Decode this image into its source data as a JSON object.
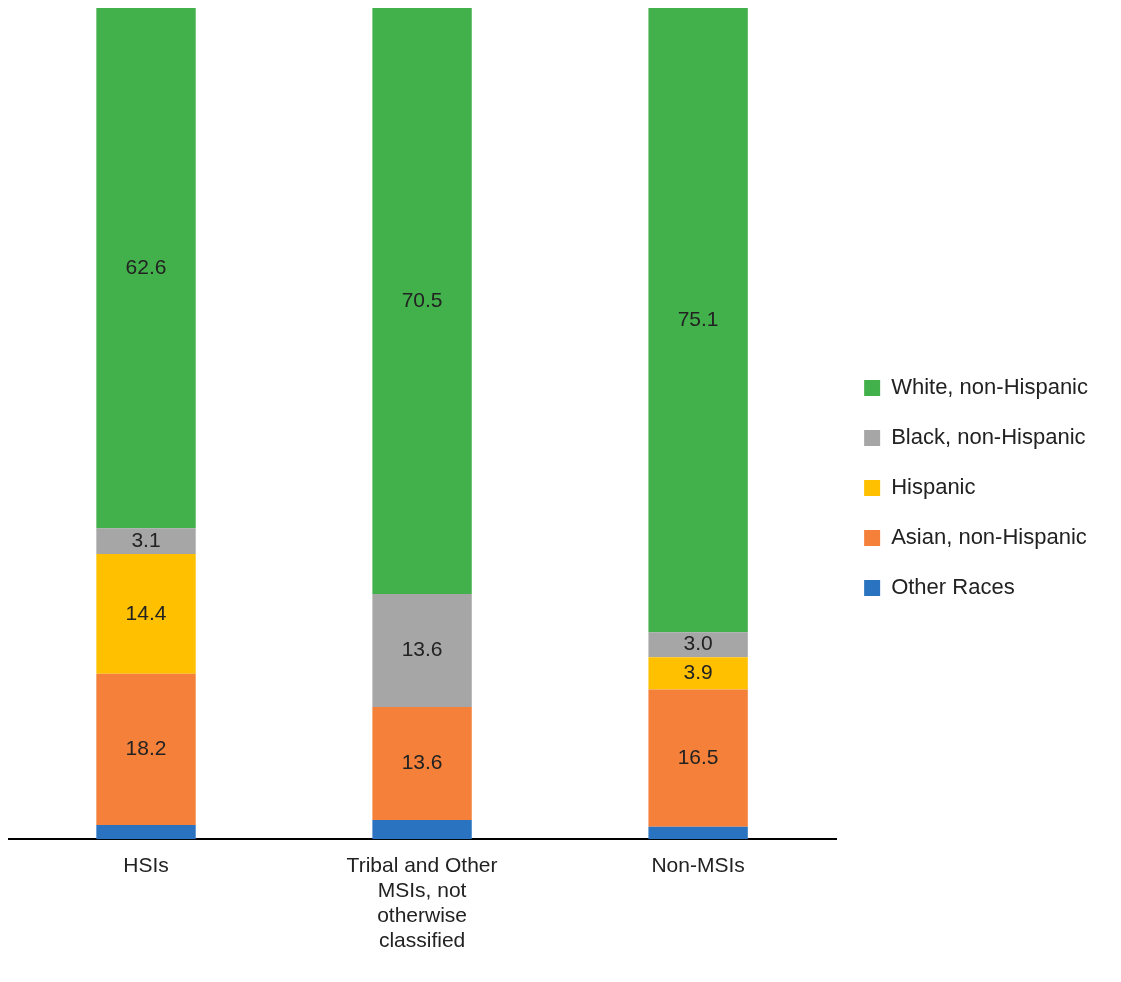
{
  "chart_data": {
    "type": "bar",
    "stacked": true,
    "legend": "right",
    "grid": false,
    "ylim": [
      0,
      100
    ],
    "categories": [
      "HSIs",
      "Tribal and Other MSIs, not otherwise classified",
      "Non-MSIs"
    ],
    "series": [
      {
        "name": "Other Races",
        "color": "#2a73c0",
        "values": [
          1.7,
          2.3,
          1.5
        ],
        "value_labels": [
          null,
          null,
          null
        ]
      },
      {
        "name": "Asian, non-Hispanic",
        "color": "#f4803a",
        "values": [
          18.2,
          13.6,
          16.5
        ],
        "value_labels": [
          "18.2",
          "13.6",
          "16.5"
        ]
      },
      {
        "name": "Hispanic",
        "color": "#ffc000",
        "values": [
          14.4,
          null,
          3.9
        ],
        "value_labels": [
          "14.4",
          null,
          "3.9"
        ]
      },
      {
        "name": "Black, non-Hispanic",
        "color": "#a6a6a6",
        "values": [
          3.1,
          13.6,
          3.0
        ],
        "value_labels": [
          "3.1",
          "13.6",
          "3.0"
        ]
      },
      {
        "name": "White, non-Hispanic",
        "color": "#43b14b",
        "values": [
          62.6,
          70.5,
          75.1
        ],
        "value_labels": [
          "62.6",
          "70.5",
          "75.1"
        ]
      }
    ]
  }
}
